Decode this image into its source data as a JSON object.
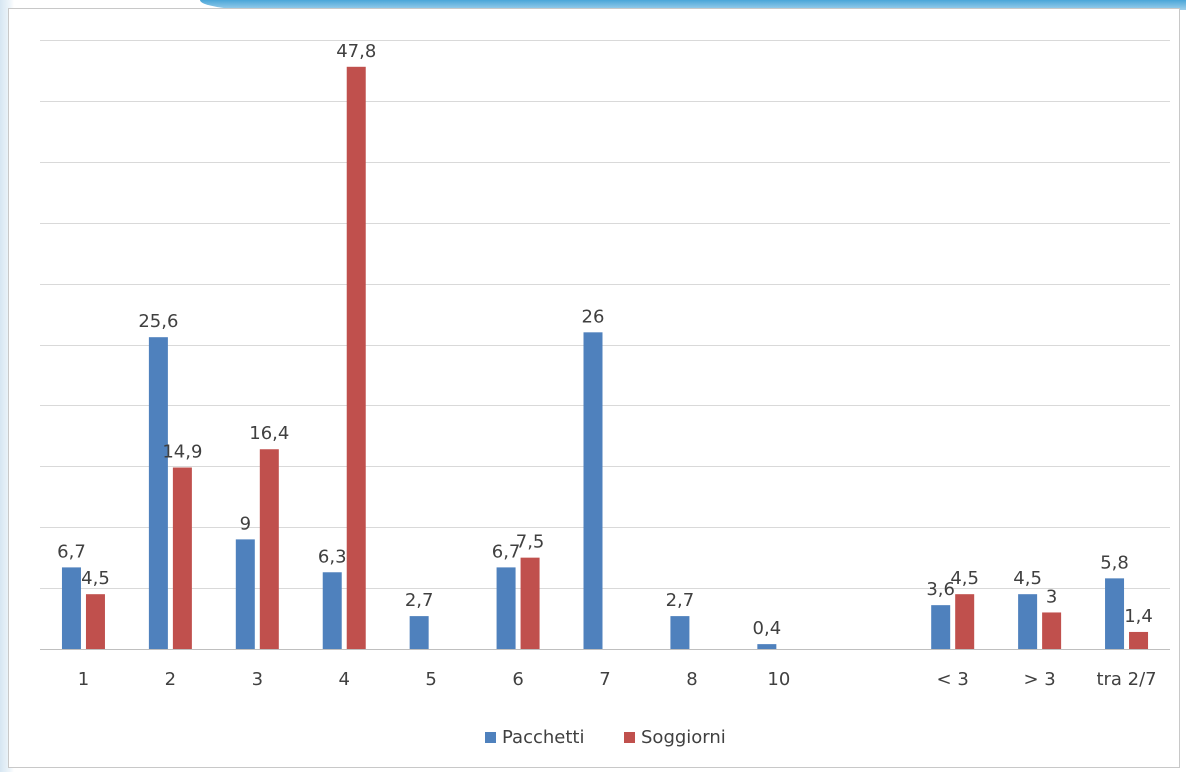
{
  "chart_data": {
    "type": "bar",
    "categories": [
      "1",
      "2",
      "3",
      "4",
      "5",
      "6",
      "7",
      "8",
      "10",
      "",
      "< 3",
      "> 3",
      "tra 2/7"
    ],
    "series": [
      {
        "name": "Pacchetti",
        "color": "#4f81bd",
        "values": [
          6.7,
          25.6,
          9,
          6.3,
          2.7,
          6.7,
          26,
          2.7,
          0.4,
          null,
          3.6,
          4.5,
          5.8
        ],
        "labels": [
          "6,7",
          "25,6",
          "9",
          "6,3",
          "2,7",
          "6,7",
          "26",
          "2,7",
          "0,4",
          "",
          "3,6",
          "4,5",
          "5,8"
        ]
      },
      {
        "name": "Soggiorni",
        "color": "#c0504d",
        "values": [
          4.5,
          14.9,
          16.4,
          47.8,
          null,
          7.5,
          null,
          null,
          null,
          null,
          4.5,
          3,
          1.4
        ],
        "labels": [
          "4,5",
          "14,9",
          "16,4",
          "47,8",
          "",
          "7,5",
          "",
          "",
          "",
          "",
          "4,5",
          "3",
          "1,4"
        ]
      }
    ],
    "ylim": [
      0,
      50
    ],
    "gridlines": [
      0,
      5,
      10,
      15,
      20,
      25,
      30,
      35,
      40,
      45,
      50
    ],
    "grid": true,
    "legend": "bottom-center"
  }
}
